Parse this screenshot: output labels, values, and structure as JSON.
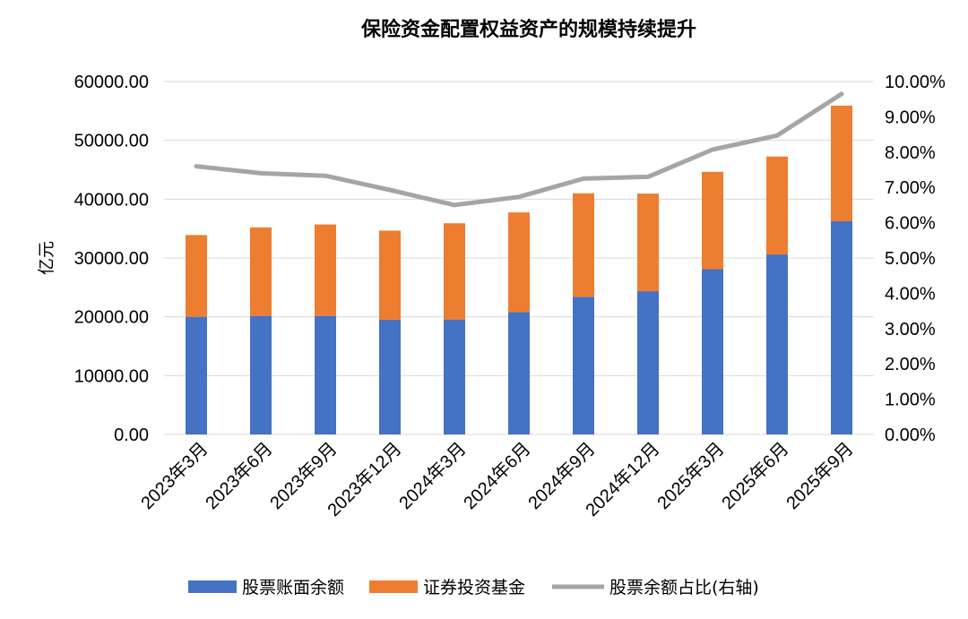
{
  "chart_data": {
    "type": "bar",
    "title": "保险资金配置权益资产的规模持续提升",
    "ylabel": "亿元",
    "y2label": "",
    "ylim": [
      0,
      60000
    ],
    "y2lim": [
      0,
      10
    ],
    "y_ticks": [
      "0.00",
      "10000.00",
      "20000.00",
      "30000.00",
      "40000.00",
      "50000.00",
      "60000.00"
    ],
    "y2_ticks": [
      "0.00%",
      "1.00%",
      "2.00%",
      "3.00%",
      "4.00%",
      "5.00%",
      "6.00%",
      "7.00%",
      "8.00%",
      "9.00%",
      "10.00%"
    ],
    "categories": [
      "2023年3月",
      "2023年6月",
      "2023年9月",
      "2023年12月",
      "2024年3月",
      "2024年6月",
      "2024年9月",
      "2024年12月",
      "2025年3月",
      "2025年6月",
      "2025年9月"
    ],
    "series": [
      {
        "name": "股票账面余额",
        "kind": "stacked-bar",
        "color": "#4472C4",
        "values": [
          20000,
          20150,
          20150,
          19500,
          19550,
          20800,
          23400,
          24350,
          28100,
          30600,
          36250
        ]
      },
      {
        "name": "证券投资基金",
        "kind": "stacked-bar",
        "color": "#ED7D31",
        "values": [
          13900,
          15050,
          15550,
          15150,
          16350,
          16950,
          17600,
          16600,
          16550,
          16650,
          19650
        ]
      },
      {
        "name": "股票余额占比(右轴)",
        "kind": "line",
        "axis": "right",
        "color": "#A5A5A5",
        "values": [
          7.6,
          7.4,
          7.33,
          6.93,
          6.5,
          6.73,
          7.25,
          7.3,
          8.07,
          8.47,
          9.65
        ]
      }
    ],
    "legend_position": "bottom",
    "grid": true
  }
}
